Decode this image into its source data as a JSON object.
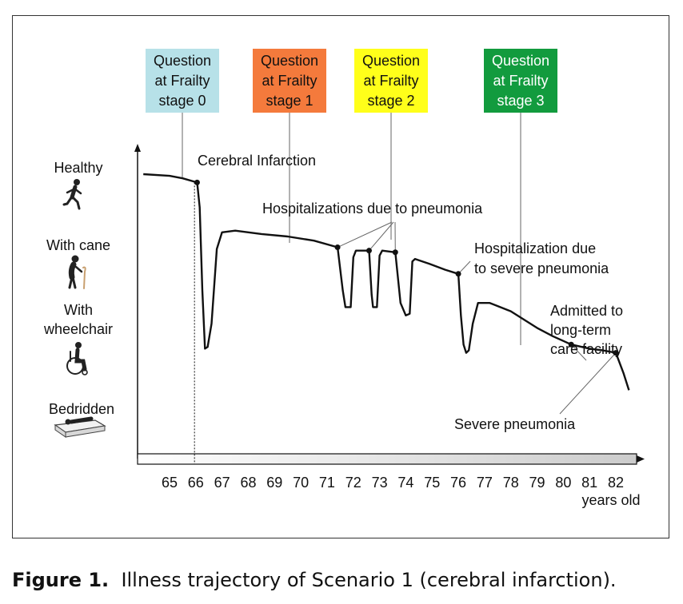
{
  "figure": {
    "caption_label": "Figure 1.",
    "caption_text": "Illness trajectory of Scenario 1 (cerebral infarction)."
  },
  "y_states": [
    {
      "label_lines": [
        "Healthy"
      ],
      "icon": "running-person-icon"
    },
    {
      "label_lines": [
        "With cane"
      ],
      "icon": "person-with-cane-icon"
    },
    {
      "label_lines": [
        "With",
        "wheelchair"
      ],
      "icon": "wheelchair-icon"
    },
    {
      "label_lines": [
        "Bedridden"
      ],
      "icon": "bed-icon"
    }
  ],
  "questions": [
    {
      "lines": [
        "Question",
        "at Frailty",
        "stage 0"
      ],
      "color": "#b7e1e8",
      "text_color": "#111111",
      "age": 65.5
    },
    {
      "lines": [
        "Question",
        "at Frailty",
        "stage 1"
      ],
      "color": "#f47a3c",
      "text_color": "#111111",
      "age": 69.5
    },
    {
      "lines": [
        "Question",
        "at Frailty",
        "stage 2"
      ],
      "color": "#ffff1a",
      "text_color": "#111111",
      "age": 73.4
    },
    {
      "lines": [
        "Question",
        "at Frailty",
        "stage 3"
      ],
      "color": "#129b3e",
      "text_color": "#ffffff",
      "age": 78.4
    }
  ],
  "events": [
    {
      "lines": [
        "Cerebral Infarction"
      ]
    },
    {
      "lines": [
        "Hospitalizations due to pneumonia"
      ]
    },
    {
      "lines": [
        "Hospitalization due",
        "to severe pneumonia"
      ]
    },
    {
      "lines": [
        "Admitted to",
        "long-term",
        "care facility"
      ]
    },
    {
      "lines": [
        "Severe pneumonia"
      ]
    }
  ],
  "chart_data": {
    "type": "line",
    "x_unit_label": "years old",
    "x_ticks": [
      65,
      66,
      67,
      68,
      69,
      70,
      71,
      72,
      73,
      74,
      75,
      76,
      77,
      78,
      79,
      80,
      81,
      82
    ],
    "y_scale": "0 = Bedridden, 1 = With wheelchair, 2 = With cane, 3 = Healthy",
    "trajectory": [
      [
        64.0,
        3.0
      ],
      [
        65.0,
        2.98
      ],
      [
        65.5,
        2.95
      ],
      [
        66.05,
        2.9
      ],
      [
        66.15,
        2.6
      ],
      [
        66.25,
        1.6
      ],
      [
        66.35,
        0.9
      ],
      [
        66.45,
        0.92
      ],
      [
        66.6,
        1.2
      ],
      [
        66.8,
        2.1
      ],
      [
        67.0,
        2.3
      ],
      [
        67.5,
        2.32
      ],
      [
        68.5,
        2.28
      ],
      [
        69.5,
        2.25
      ],
      [
        70.5,
        2.2
      ],
      [
        71.4,
        2.12
      ],
      [
        71.6,
        1.6
      ],
      [
        71.7,
        1.4
      ],
      [
        71.9,
        1.4
      ],
      [
        72.0,
        2.0
      ],
      [
        72.1,
        2.08
      ],
      [
        72.6,
        2.08
      ],
      [
        72.7,
        1.55
      ],
      [
        72.75,
        1.4
      ],
      [
        72.9,
        1.4
      ],
      [
        73.0,
        2.02
      ],
      [
        73.1,
        2.08
      ],
      [
        73.6,
        2.06
      ],
      [
        73.8,
        1.45
      ],
      [
        74.0,
        1.3
      ],
      [
        74.15,
        1.32
      ],
      [
        74.25,
        1.95
      ],
      [
        74.35,
        1.98
      ],
      [
        74.9,
        1.92
      ],
      [
        75.5,
        1.85
      ],
      [
        76.0,
        1.8
      ],
      [
        76.1,
        1.3
      ],
      [
        76.2,
        0.95
      ],
      [
        76.3,
        0.85
      ],
      [
        76.4,
        0.88
      ],
      [
        76.55,
        1.2
      ],
      [
        76.75,
        1.45
      ],
      [
        77.2,
        1.45
      ],
      [
        78.0,
        1.35
      ],
      [
        78.5,
        1.25
      ],
      [
        79.0,
        1.15
      ],
      [
        79.6,
        1.05
      ],
      [
        80.3,
        0.95
      ],
      [
        81.0,
        0.9
      ],
      [
        81.5,
        0.88
      ],
      [
        82.0,
        0.85
      ],
      [
        82.3,
        0.6
      ],
      [
        82.5,
        0.4
      ]
    ],
    "markers": [
      {
        "age": 66.05,
        "value": 2.9
      },
      {
        "age": 71.4,
        "value": 2.12
      },
      {
        "age": 72.6,
        "value": 2.08
      },
      {
        "age": 73.6,
        "value": 2.06
      },
      {
        "age": 76.0,
        "value": 1.8
      },
      {
        "age": 80.3,
        "value": 0.95
      },
      {
        "age": 82.0,
        "value": 0.85
      }
    ],
    "age_bar_gradient": [
      "#ffffff",
      "#cccccc"
    ]
  }
}
